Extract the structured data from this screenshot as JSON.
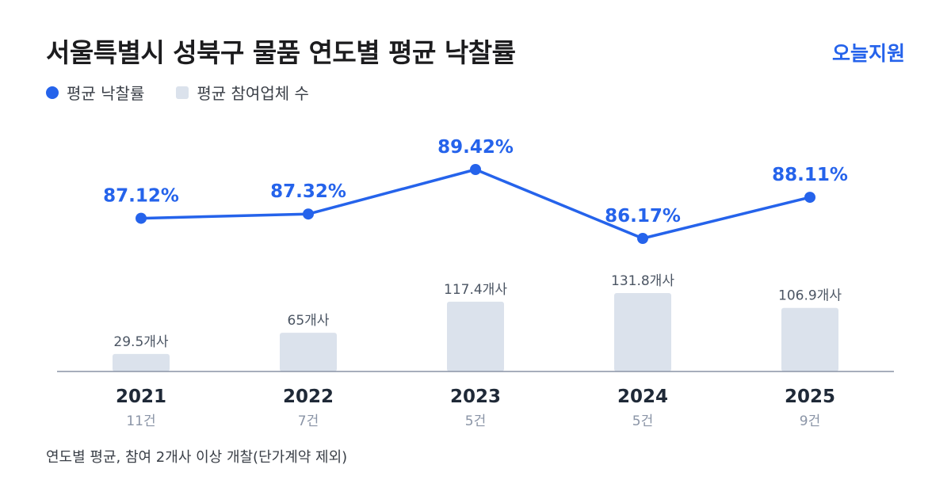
{
  "title": "서울특별시 성북구 물품 연도별 평균 낙찰률",
  "brand": "오늘지원",
  "legend": {
    "line_label": "평균 낙찰률",
    "bar_label": "평균 참여업체 수"
  },
  "footnote": "연도별 평균, 참여 2개사 이상 개찰(단가계약 제외)",
  "colors": {
    "line": "#2563eb",
    "bar": "#dbe2ec",
    "axis": "#8a94a6",
    "year_text": "#1f2937",
    "count_text": "#8a94a6",
    "bar_label_text": "#4b5563"
  },
  "chart_data": {
    "type": "bar",
    "categories": [
      "2021",
      "2022",
      "2023",
      "2024",
      "2025"
    ],
    "counts": [
      "11건",
      "7건",
      "5건",
      "5건",
      "9건"
    ],
    "series": [
      {
        "name": "평균 낙찰률",
        "type": "line",
        "values": [
          87.12,
          87.32,
          89.42,
          86.17,
          88.11
        ],
        "labels": [
          "87.12%",
          "87.32%",
          "89.42%",
          "86.17%",
          "88.11%"
        ]
      },
      {
        "name": "평균 참여업체 수",
        "type": "bar",
        "values": [
          29.5,
          65,
          117.4,
          131.8,
          106.9
        ],
        "labels": [
          "29.5개사",
          "65개사",
          "117.4개사",
          "131.8개사",
          "106.9개사"
        ]
      }
    ],
    "line_ylim": [
      84,
      91
    ],
    "bar_ylim": [
      0,
      131.8
    ],
    "grid": false,
    "legend_position": "top-left"
  }
}
